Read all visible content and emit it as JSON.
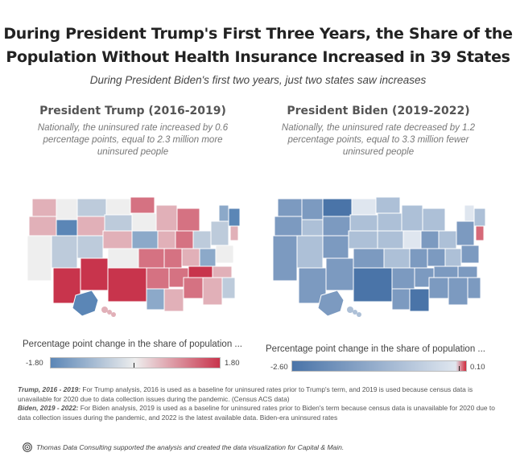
{
  "header": {
    "title_line1": "During President Trump's First Three Years, the Share of the",
    "title_line2": "Population Without Health Insurance Increased in 39 States",
    "subtitle": "During President Biden's first two years, just two states saw increases"
  },
  "panels": {
    "trump": {
      "heading": "President Trump (2016-2019)",
      "description": "Nationally, the uninsured rate increased by 0.6 percentage points, equal to 2.3 million more uninsured people",
      "legend_title": "Percentage point change in the share of population ...",
      "legend_min": "-1.80",
      "legend_max": "1.80",
      "colors": {
        "low": "#5b86b6",
        "mid": "#eeeeee",
        "high": "#c8344c"
      }
    },
    "biden": {
      "heading": "President Biden (2019-2022)",
      "description": "Nationally, the uninsured rate decreased by 1.2 percentage points, equal to 3.3 million fewer uninsured people",
      "legend_title": "Percentage point change in the share of population ...",
      "legend_min": "-2.60",
      "legend_max": "0.10",
      "colors": {
        "low": "#4a74a8",
        "mid": "#dfe6ef",
        "high": "#d12a3c"
      }
    }
  },
  "notes": {
    "trump_label": "Trump, 2016 - 2019:",
    "trump_text": " For Trump analysis, 2016 is used as a baseline for uninsured rates prior to Trump's term, and 2019 is used because census data is unavailable for 2020 due to data collection issues during the pandemic.  (Census ACS data)",
    "biden_label": "Biden, 2019 - 2022:",
    "biden_text": " For Biden analysis, 2019 is used as a baseline for uninsured rates prior to Biden's term because census data is unavailable for 2020 due to data collection issues during the pandemic, and 2022 is the latest available data. Biden-era uninsured rates"
  },
  "footer": {
    "credit": "Thomas Data Consulting supported the analysis and created the data visualization for Capital & Main."
  }
}
